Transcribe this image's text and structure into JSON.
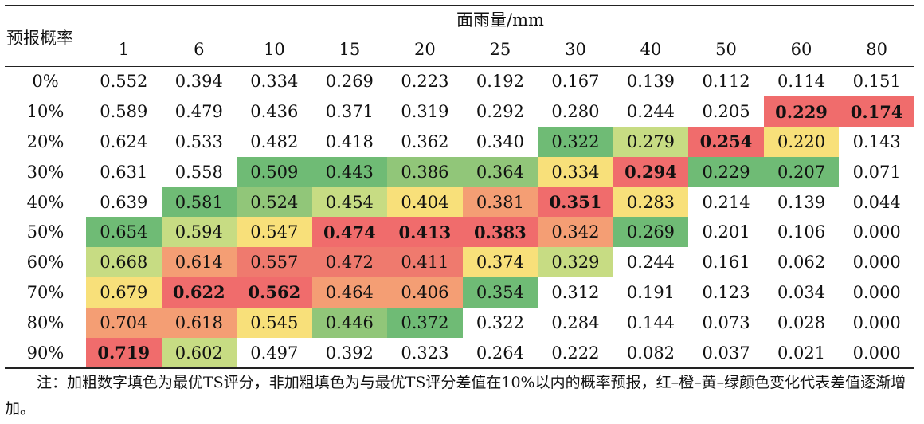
{
  "table": {
    "row_header_label": "预报概率",
    "column_group_label": "面雨量/mm",
    "columns": [
      "1",
      "6",
      "10",
      "15",
      "20",
      "25",
      "30",
      "40",
      "50",
      "60",
      "80"
    ],
    "rows": [
      {
        "label": "0%",
        "cells": [
          {
            "v": "0.552"
          },
          {
            "v": "0.394"
          },
          {
            "v": "0.334"
          },
          {
            "v": "0.269"
          },
          {
            "v": "0.223"
          },
          {
            "v": "0.192"
          },
          {
            "v": "0.167"
          },
          {
            "v": "0.139"
          },
          {
            "v": "0.112"
          },
          {
            "v": "0.114"
          },
          {
            "v": "0.151"
          }
        ]
      },
      {
        "label": "10%",
        "cells": [
          {
            "v": "0.589"
          },
          {
            "v": "0.479"
          },
          {
            "v": "0.436"
          },
          {
            "v": "0.371"
          },
          {
            "v": "0.319"
          },
          {
            "v": "0.292"
          },
          {
            "v": "0.280"
          },
          {
            "v": "0.244"
          },
          {
            "v": "0.205"
          },
          {
            "v": "0.229",
            "bold": true,
            "fill": "red"
          },
          {
            "v": "0.174",
            "bold": true,
            "fill": "red"
          }
        ]
      },
      {
        "label": "20%",
        "cells": [
          {
            "v": "0.624"
          },
          {
            "v": "0.533"
          },
          {
            "v": "0.482"
          },
          {
            "v": "0.418"
          },
          {
            "v": "0.362"
          },
          {
            "v": "0.340"
          },
          {
            "v": "0.322",
            "fill": "dgreen"
          },
          {
            "v": "0.279",
            "fill": "lgreen"
          },
          {
            "v": "0.254",
            "bold": true,
            "fill": "red"
          },
          {
            "v": "0.220",
            "fill": "yellow"
          },
          {
            "v": "0.143"
          }
        ]
      },
      {
        "label": "30%",
        "cells": [
          {
            "v": "0.631"
          },
          {
            "v": "0.558"
          },
          {
            "v": "0.509",
            "fill": "dgreen"
          },
          {
            "v": "0.443",
            "fill": "dgreen"
          },
          {
            "v": "0.386",
            "fill": "green"
          },
          {
            "v": "0.364",
            "fill": "green"
          },
          {
            "v": "0.334",
            "fill": "yellow"
          },
          {
            "v": "0.294",
            "bold": true,
            "fill": "red"
          },
          {
            "v": "0.229",
            "fill": "dgreen"
          },
          {
            "v": "0.207",
            "fill": "dgreen"
          },
          {
            "v": "0.071"
          }
        ]
      },
      {
        "label": "40%",
        "cells": [
          {
            "v": "0.639"
          },
          {
            "v": "0.581",
            "fill": "dgreen"
          },
          {
            "v": "0.524",
            "fill": "green"
          },
          {
            "v": "0.454",
            "fill": "lgreen"
          },
          {
            "v": "0.404",
            "fill": "yellow"
          },
          {
            "v": "0.381",
            "fill": "orange"
          },
          {
            "v": "0.351",
            "bold": true,
            "fill": "red"
          },
          {
            "v": "0.283",
            "fill": "yellow"
          },
          {
            "v": "0.214"
          },
          {
            "v": "0.139"
          },
          {
            "v": "0.044"
          }
        ]
      },
      {
        "label": "50%",
        "cells": [
          {
            "v": "0.654",
            "fill": "dgreen"
          },
          {
            "v": "0.594",
            "fill": "lgreen"
          },
          {
            "v": "0.547",
            "fill": "yellow"
          },
          {
            "v": "0.474",
            "bold": true,
            "fill": "red"
          },
          {
            "v": "0.413",
            "bold": true,
            "fill": "red"
          },
          {
            "v": "0.383",
            "bold": true,
            "fill": "red"
          },
          {
            "v": "0.342",
            "fill": "orange"
          },
          {
            "v": "0.269",
            "fill": "dgreen"
          },
          {
            "v": "0.201"
          },
          {
            "v": "0.106"
          },
          {
            "v": "0.000"
          }
        ]
      },
      {
        "label": "60%",
        "cells": [
          {
            "v": "0.668",
            "fill": "lgreen"
          },
          {
            "v": "0.614",
            "fill": "orange"
          },
          {
            "v": "0.557",
            "fill": "red2"
          },
          {
            "v": "0.472",
            "fill": "red2"
          },
          {
            "v": "0.411",
            "fill": "red2"
          },
          {
            "v": "0.374",
            "fill": "yellow"
          },
          {
            "v": "0.329",
            "fill": "lgreen"
          },
          {
            "v": "0.244"
          },
          {
            "v": "0.161"
          },
          {
            "v": "0.062"
          },
          {
            "v": "0.000"
          }
        ]
      },
      {
        "label": "70%",
        "cells": [
          {
            "v": "0.679",
            "fill": "yellow"
          },
          {
            "v": "0.622",
            "bold": true,
            "fill": "red"
          },
          {
            "v": "0.562",
            "bold": true,
            "fill": "red"
          },
          {
            "v": "0.464",
            "fill": "orange"
          },
          {
            "v": "0.406",
            "fill": "orange"
          },
          {
            "v": "0.354",
            "fill": "dgreen"
          },
          {
            "v": "0.312"
          },
          {
            "v": "0.191"
          },
          {
            "v": "0.123"
          },
          {
            "v": "0.034"
          },
          {
            "v": "0.000"
          }
        ]
      },
      {
        "label": "80%",
        "cells": [
          {
            "v": "0.704",
            "fill": "orange"
          },
          {
            "v": "0.618",
            "fill": "orange"
          },
          {
            "v": "0.545",
            "fill": "yellow"
          },
          {
            "v": "0.446",
            "fill": "green"
          },
          {
            "v": "0.372",
            "fill": "dgreen"
          },
          {
            "v": "0.322"
          },
          {
            "v": "0.284"
          },
          {
            "v": "0.144"
          },
          {
            "v": "0.073"
          },
          {
            "v": "0.028"
          },
          {
            "v": "0.000"
          }
        ]
      },
      {
        "label": "90%",
        "cells": [
          {
            "v": "0.719",
            "bold": true,
            "fill": "red"
          },
          {
            "v": "0.602",
            "fill": "lgreen"
          },
          {
            "v": "0.497"
          },
          {
            "v": "0.392"
          },
          {
            "v": "0.323"
          },
          {
            "v": "0.264"
          },
          {
            "v": "0.222"
          },
          {
            "v": "0.082"
          },
          {
            "v": "0.037"
          },
          {
            "v": "0.021"
          },
          {
            "v": "0.000"
          }
        ]
      }
    ]
  },
  "note": "注：加粗数字填色为最优TS评分，非加粗填色为与最优TS评分差值在10%以内的概率预报，红–橙–黄–绿颜色变化代表差值逐渐增加。",
  "colors": {
    "red": "#f06c6c",
    "red2": "#ef7a6e",
    "orange": "#f49e74",
    "yellow": "#f8e07a",
    "lgreen": "#c7dc83",
    "green": "#91c679",
    "dgreen": "#6fbb75"
  }
}
